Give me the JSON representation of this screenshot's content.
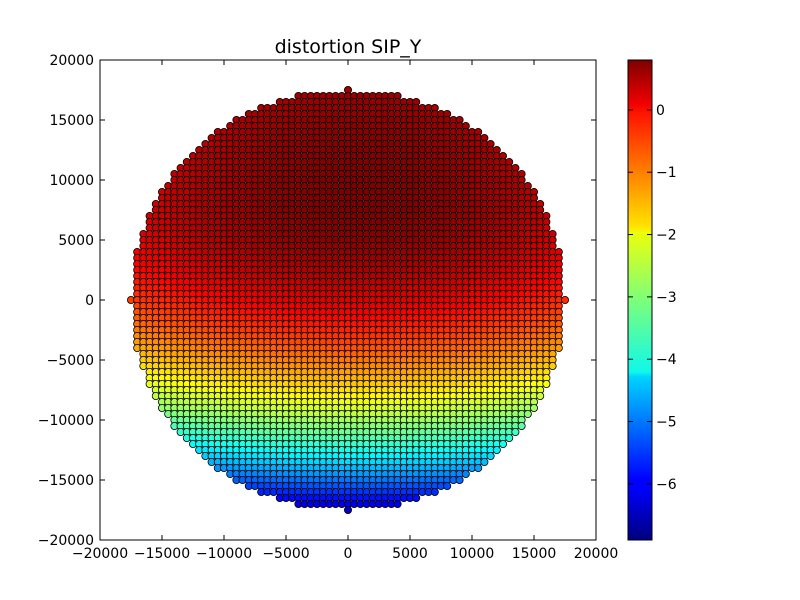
{
  "chart_data": {
    "type": "scatter",
    "title": "distortion SIP_Y",
    "xlabel": "",
    "ylabel": "",
    "xlim": [
      -20000,
      20000
    ],
    "ylim": [
      -20000,
      20000
    ],
    "x_ticks": [
      -20000,
      -15000,
      -10000,
      -5000,
      0,
      5000,
      10000,
      15000,
      20000
    ],
    "y_ticks": [
      -20000,
      -15000,
      -10000,
      -5000,
      0,
      5000,
      10000,
      15000,
      20000
    ],
    "x_tick_labels": [
      "−20000",
      "−15000",
      "−10000",
      "−5000",
      "0",
      "5000",
      "10000",
      "15000",
      "20000"
    ],
    "y_tick_labels": [
      "−20000",
      "−15000",
      "−10000",
      "−5000",
      "0",
      "5000",
      "10000",
      "15000",
      "20000"
    ],
    "grid": false,
    "point_grid": {
      "spacing": 500,
      "field_radius": 17500,
      "shape": "circular field of evenly spaced points covering x, y from -17500 to 17500"
    },
    "color_function": {
      "description": "approximate SIP_Y distortion value at each point: maximum ~0.8 near (1000, 8000), decreasing outward to ~-6.9 at the bottom edge",
      "peak_value": 0.8,
      "peak_location": [
        1000,
        8000
      ],
      "x_coefficient": 2.1e-09,
      "y_coefficient_above_peak": 2.5e-09,
      "y_coefficient_below_peak": 1.1e-08
    },
    "colorbar": {
      "colormap": "jet",
      "vmin": -6.9,
      "vmax": 0.8,
      "ticks": [
        0,
        -1,
        -2,
        -3,
        -4,
        -5,
        -6
      ],
      "tick_labels": [
        "0",
        "−1",
        "−2",
        "−3",
        "−4",
        "−5",
        "−6"
      ]
    },
    "marker": {
      "shape": "circle",
      "edge_color": "#000000"
    }
  }
}
